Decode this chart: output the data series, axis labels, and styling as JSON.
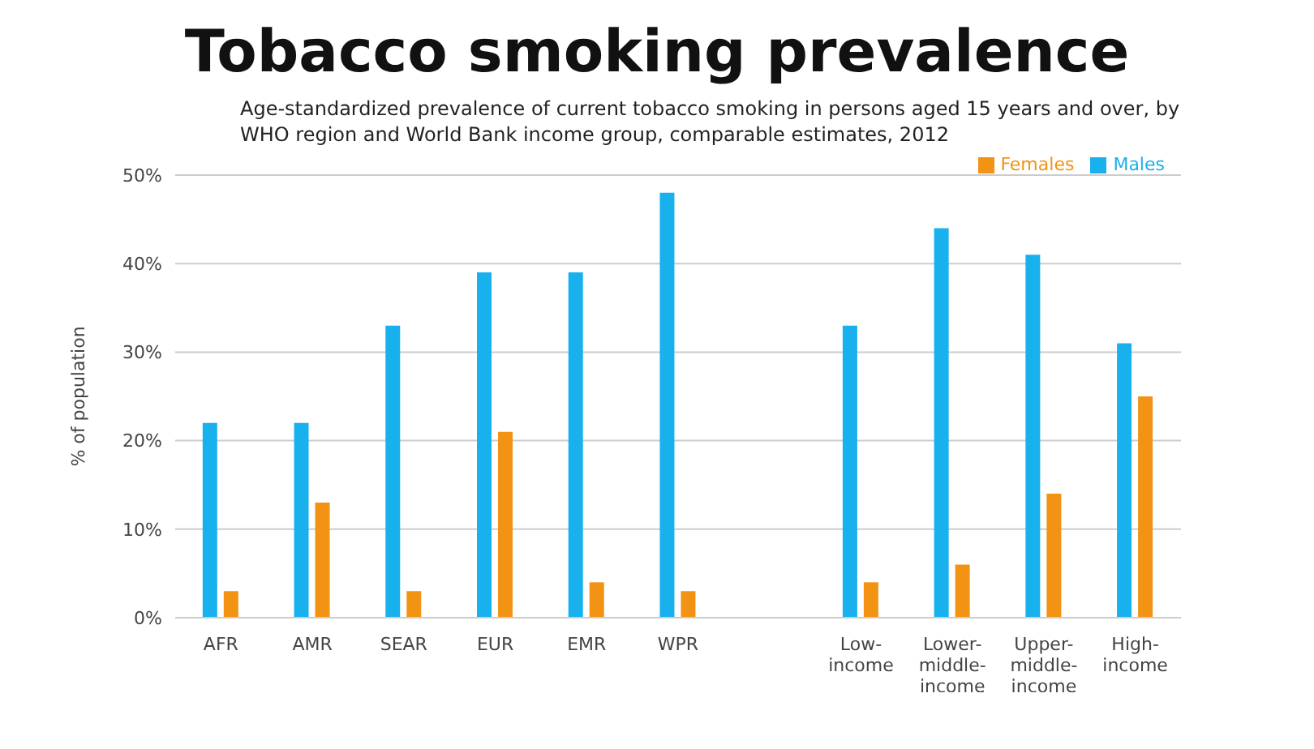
{
  "chart_data": {
    "type": "bar",
    "title": "Tobacco smoking prevalence",
    "subtitle": "Age-standardized prevalence of current tobacco smoking in persons aged 15 years and over, by WHO region and World Bank income group, comparable estimates, 2012",
    "ylabel": "% of population",
    "categories": [
      "AFR",
      "AMR",
      "SEAR",
      "EUR",
      "EMR",
      "WPR",
      null,
      "Low-income",
      "Lower-middle-income",
      "Upper-middle-income",
      "High-income"
    ],
    "series": [
      {
        "name": "Males",
        "color": "#18b1ee",
        "values": [
          22,
          22,
          33,
          39,
          39,
          48,
          null,
          33,
          44,
          41,
          31
        ]
      },
      {
        "name": "Females",
        "color": "#f39314",
        "values": [
          3,
          13,
          3,
          21,
          4,
          3,
          null,
          4,
          6,
          14,
          25
        ]
      }
    ],
    "ylim": [
      0,
      50
    ],
    "yticks": [
      {
        "value": 0,
        "label": "0%"
      },
      {
        "value": 10,
        "label": "10%"
      },
      {
        "value": 20,
        "label": "20%"
      },
      {
        "value": 30,
        "label": "30%"
      },
      {
        "value": 40,
        "label": "40%"
      },
      {
        "value": 50,
        "label": "50%"
      }
    ],
    "grid": "y",
    "legend": "top right"
  }
}
